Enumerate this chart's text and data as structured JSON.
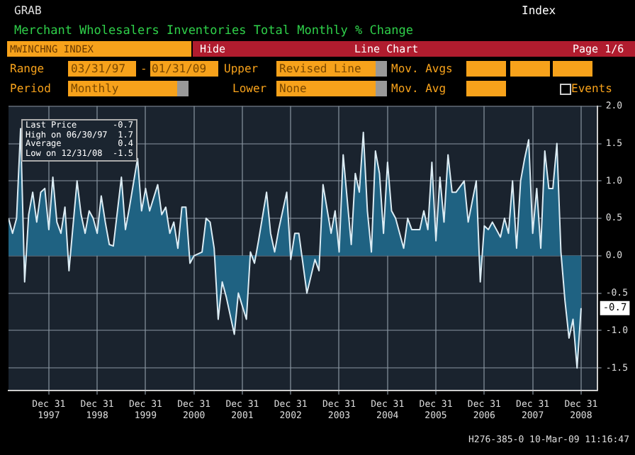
{
  "chart_data": {
    "type": "area",
    "title": "Merchant Wholesalers Inventories Total Monthly % Change",
    "annotations": [
      "GRAB",
      "Index",
      "MWINCHNG INDEX",
      "Hide",
      "Line Chart",
      "Page 1/6",
      "Range",
      "03/31/97",
      "-",
      "01/31/09",
      "Upper",
      "Revised Line",
      "Mov. Avgs",
      "Period",
      "Monthly",
      "Lower",
      "None",
      "Mov. Avg",
      "Events",
      "Last Price",
      "-0.7",
      "High on 06/30/97",
      "1.7",
      "Average",
      "0.4",
      "Low on 12/31/08",
      "-1.5",
      "H276-385-0 10-Mar-09 11:16:47",
      {
        "text": "-0.7",
        "x": "2009-01",
        "y": -0.7
      }
    ],
    "series": [
      {
        "color": "#1f6282",
        "x": [
          "1997-03",
          "1997-04",
          "1997-05",
          "1997-06",
          "1997-07",
          "1997-08",
          "1997-09",
          "1997-10",
          "1997-11",
          "1997-12",
          "1998-01",
          "1998-02",
          "1998-03",
          "1998-04",
          "1998-05",
          "1998-06",
          "1998-08",
          "1998-09",
          "1998-10",
          "1998-11",
          "1998-12",
          "1999-01",
          "1999-02",
          "1999-03",
          "1999-04",
          "1999-05",
          "1999-07",
          "1999-08",
          "1999-09",
          "1999-11",
          "1999-12",
          "2000-01",
          "2000-02",
          "2000-04",
          "2000-05",
          "2000-06",
          "2000-07",
          "2000-08",
          "2000-09",
          "2000-10",
          "2000-11",
          "2000-12",
          "2001-01",
          "2001-03",
          "2001-04",
          "2001-05",
          "2001-06",
          "2001-07",
          "2001-08",
          "2001-09",
          "2001-11",
          "2001-12",
          "2002-02",
          "2002-03",
          "2002-04",
          "2002-05",
          "2002-07",
          "2002-08",
          "2002-09",
          "2002-10",
          "2002-12",
          "2003-01",
          "2003-02",
          "2003-03",
          "2003-05",
          "2003-07",
          "2003-08",
          "2003-09",
          "2003-11",
          "2003-12",
          "2004-01",
          "2004-02",
          "2004-04",
          "2004-05",
          "2004-06",
          "2004-07",
          "2004-08",
          "2004-09",
          "2004-10",
          "2004-11",
          "2004-12",
          "2005-01",
          "2005-02",
          "2005-03",
          "2005-05",
          "2005-06",
          "2005-07",
          "2005-09",
          "2005-10",
          "2005-11",
          "2005-12",
          "2006-01",
          "2006-02",
          "2006-03",
          "2006-04",
          "2006-05",
          "2006-06",
          "2006-08",
          "2006-09",
          "2006-11",
          "2006-12",
          "2007-01",
          "2007-02",
          "2007-03",
          "2007-05",
          "2007-06",
          "2007-07",
          "2007-08",
          "2007-09",
          "2007-10",
          "2007-11",
          "2007-12",
          "2008-01",
          "2008-02",
          "2008-03",
          "2008-04",
          "2008-05",
          "2008-06",
          "2008-07",
          "2008-08",
          "2008-09",
          "2008-10",
          "2008-11",
          "2008-12",
          "2009-01"
        ],
        "values": [
          0.5,
          0.3,
          0.5,
          1.7,
          -0.35,
          0.55,
          0.85,
          0.45,
          0.85,
          0.9,
          0.35,
          1.05,
          0.45,
          0.3,
          0.65,
          -0.2,
          1.0,
          0.55,
          0.3,
          0.6,
          0.5,
          0.3,
          0.8,
          0.45,
          0.15,
          0.13,
          1.05,
          0.35,
          0.65,
          1.3,
          0.6,
          0.9,
          0.6,
          0.95,
          0.55,
          0.65,
          0.3,
          0.45,
          0.1,
          0.65,
          0.65,
          -0.1,
          0.0,
          0.05,
          0.5,
          0.45,
          0.1,
          -0.85,
          -0.35,
          -0.55,
          -1.05,
          -0.5,
          -0.85,
          0.05,
          -0.1,
          0.2,
          0.85,
          0.3,
          0.05,
          0.35,
          0.85,
          -0.05,
          0.3,
          0.3,
          -0.5,
          -0.05,
          -0.2,
          0.95,
          0.3,
          0.6,
          0.05,
          1.35,
          0.15,
          1.1,
          0.85,
          1.65,
          0.6,
          0.05,
          1.4,
          1.1,
          0.3,
          1.25,
          0.6,
          0.5,
          0.1,
          0.5,
          0.35,
          0.35,
          0.6,
          0.35,
          1.25,
          0.2,
          1.05,
          0.45,
          1.35,
          0.85,
          0.85,
          1.0,
          0.45,
          1.0,
          -0.35,
          0.4,
          0.35,
          0.45,
          0.25,
          0.5,
          0.3,
          1.0,
          0.1,
          1.0,
          1.3,
          1.55,
          0.3,
          0.9,
          0.1,
          1.4,
          0.9,
          0.9,
          1.5,
          0.05,
          -0.6,
          -1.1,
          -0.85,
          -1.5,
          -0.7
        ]
      }
    ],
    "xlim": [
      "1997-03",
      "2009-05"
    ],
    "xticks": [
      {
        "value": "1997-12-31",
        "label": "Dec 31 1997"
      },
      {
        "value": "1998-12-31",
        "label": "Dec 31 1998"
      },
      {
        "value": "1999-12-31",
        "label": "Dec 31 1999"
      },
      {
        "value": "2000-12-31",
        "label": "Dec 31 2000"
      },
      {
        "value": "2001-12-31",
        "label": "Dec 31 2001"
      },
      {
        "value": "2002-12-31",
        "label": "Dec 31 2002"
      },
      {
        "value": "2003-12-31",
        "label": "Dec 31 2003"
      },
      {
        "value": "2004-12-31",
        "label": "Dec 31 2004"
      },
      {
        "value": "2005-12-31",
        "label": "Dec 31 2005"
      },
      {
        "value": "2006-12-31",
        "label": "Dec 31 2006"
      },
      {
        "value": "2007-12-31",
        "label": "Dec 31 2007"
      },
      {
        "value": "2008-12-31",
        "label": "Dec 31 2008"
      }
    ],
    "ylim": [
      -1.8,
      2.0
    ],
    "yticks": [
      {
        "value": -1.5,
        "label": "-1.5"
      },
      {
        "value": -1,
        "label": "-1.0"
      },
      {
        "value": -0.5,
        "label": "-0.5"
      },
      {
        "value": 0,
        "label": "0.0"
      },
      {
        "value": 0.5,
        "label": "0.5"
      },
      {
        "value": 1,
        "label": "1.0"
      },
      {
        "value": 1.5,
        "label": "1.5"
      },
      {
        "value": 2,
        "label": "2.0"
      }
    ],
    "grid": true
  }
}
